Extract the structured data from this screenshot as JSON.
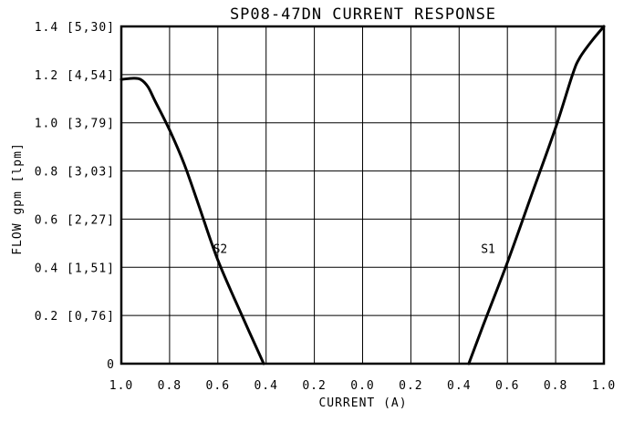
{
  "chart_data": {
    "type": "line",
    "title": "SP08-47DN CURRENT RESPONSE",
    "xlabel": "CURRENT (A)",
    "ylabel": "FLOW gpm [lpm]",
    "x_tick_labels": [
      "1.0",
      "0.8",
      "0.6",
      "0.4",
      "0.2",
      "0.0",
      "0.2",
      "0.4",
      "0.6",
      "0.8",
      "1.0"
    ],
    "y_ticks": [
      {
        "value": 0,
        "label": "0"
      },
      {
        "value": 0.2,
        "label": "0.2 [0,76]"
      },
      {
        "value": 0.4,
        "label": "0.4 [1,51]"
      },
      {
        "value": 0.6,
        "label": "0.6 [2,27]"
      },
      {
        "value": 0.8,
        "label": "0.8 [3,03]"
      },
      {
        "value": 1.0,
        "label": "1.0 [3,79]"
      },
      {
        "value": 1.2,
        "label": "1.2 [4,54]"
      },
      {
        "value": 1.4,
        "label": "1.4 [5,30]"
      }
    ],
    "xlim": [
      -1.0,
      1.0
    ],
    "ylim": [
      0,
      1.4
    ],
    "grid": true,
    "x_note": "Left half of axis is S2 coil current (1.0 to 0.0 A), right half is S1 coil current (0.0 to 1.0 A)",
    "series": [
      {
        "name": "S2",
        "label_at": {
          "x": -0.59,
          "y": 0.46
        },
        "x": [
          1.0,
          0.95,
          0.92,
          0.89,
          0.86,
          0.8,
          0.74,
          0.68,
          0.6,
          0.5,
          0.41
        ],
        "y": [
          1.18,
          1.185,
          1.18,
          1.15,
          1.09,
          0.97,
          0.83,
          0.66,
          0.43,
          0.2,
          0.0
        ]
      },
      {
        "name": "S1",
        "label_at": {
          "x": 0.52,
          "y": 0.46
        },
        "x": [
          0.44,
          0.5,
          0.6,
          0.7,
          0.8,
          0.87,
          0.9,
          0.95,
          1.0
        ],
        "y": [
          0.0,
          0.16,
          0.42,
          0.7,
          0.98,
          1.2,
          1.27,
          1.34,
          1.4
        ]
      }
    ]
  }
}
